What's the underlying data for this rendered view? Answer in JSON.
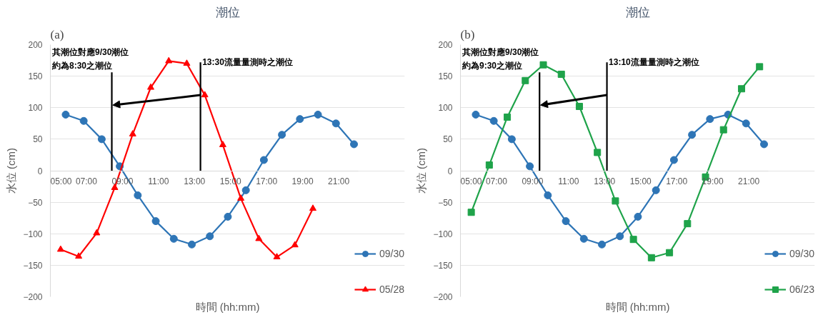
{
  "chart_data": [
    {
      "type": "line",
      "title": "潮位",
      "xlabel": "時間 (hh:mm)",
      "ylabel": "水位 (cm)",
      "xlim": [
        5,
        22.1
      ],
      "ylim": [
        -200,
        200
      ],
      "xticks": [
        {
          "value": 5,
          "label": "05:00"
        },
        {
          "value": 7,
          "label": "07:00"
        },
        {
          "value": 9,
          "label": "09:00"
        },
        {
          "value": 11,
          "label": "11:00"
        },
        {
          "value": 13,
          "label": "13:00"
        },
        {
          "value": 15,
          "label": "15:00"
        },
        {
          "value": 17,
          "label": "17:00"
        },
        {
          "value": 19,
          "label": "19:00"
        },
        {
          "value": 21,
          "label": "21:00"
        }
      ],
      "yticks": [
        -200,
        -150,
        -100,
        -50,
        0,
        50,
        100,
        150,
        200
      ],
      "grid": "y",
      "legend": "right",
      "series": [
        {
          "name": "09/30",
          "color": "#2e75b6",
          "marker": "circle",
          "x": [
            5.85,
            6.85,
            7.85,
            8.85,
            9.85,
            10.85,
            11.85,
            12.85,
            13.85,
            14.85,
            15.85,
            16.85,
            17.85,
            18.85,
            19.85,
            20.85,
            21.85
          ],
          "values": [
            89,
            79,
            50,
            7,
            -39,
            -80,
            -108,
            -117,
            -104,
            -73,
            -31,
            17,
            57,
            82,
            89,
            75,
            42
          ]
        },
        {
          "name": "05/28",
          "color": "#ff0000",
          "marker": "triangle",
          "x": [
            5.57,
            6.57,
            7.57,
            8.57,
            9.57,
            10.57,
            11.57,
            12.57,
            13.57,
            14.57,
            15.57,
            16.57,
            17.57,
            18.57,
            19.57
          ],
          "values": [
            -125,
            -136,
            -99,
            -27,
            58,
            132,
            174,
            170,
            120,
            41,
            -44,
            -108,
            -137,
            -118,
            -60
          ]
        }
      ],
      "ref_lines": [
        {
          "axis": "x",
          "value": 8.41,
          "label": "其潮位對應9/30潮位約為8:30之潮位"
        },
        {
          "axis": "x",
          "value": 13.33,
          "label": "13:30流量量測時之潮位"
        }
      ],
      "annotations": [
        "(a)"
      ]
    },
    {
      "type": "line",
      "title": "潮位",
      "xlabel": "時間 (hh:mm)",
      "ylabel": "水位 (cm)",
      "xlim": [
        5,
        22.1
      ],
      "ylim": [
        -200,
        200
      ],
      "xticks": [
        {
          "value": 5,
          "label": "05:00"
        },
        {
          "value": 7,
          "label": "07:00"
        },
        {
          "value": 9,
          "label": "09:00"
        },
        {
          "value": 11,
          "label": "11:00"
        },
        {
          "value": 13,
          "label": "13:00"
        },
        {
          "value": 15,
          "label": "15:00"
        },
        {
          "value": 17,
          "label": "17:00"
        },
        {
          "value": 19,
          "label": "19:00"
        },
        {
          "value": 21,
          "label": "21:00"
        }
      ],
      "yticks": [
        -200,
        -150,
        -100,
        -50,
        0,
        50,
        100,
        150,
        200
      ],
      "grid": "y",
      "legend": "right",
      "series": [
        {
          "name": "09/30",
          "color": "#2e75b6",
          "marker": "circle",
          "x": [
            5.85,
            6.85,
            7.85,
            8.85,
            9.85,
            10.85,
            11.85,
            12.85,
            13.85,
            14.85,
            15.85,
            16.85,
            17.85,
            18.85,
            19.85,
            20.85,
            21.85
          ],
          "values": [
            89,
            79,
            50,
            7,
            -39,
            -80,
            -108,
            -117,
            -104,
            -73,
            -31,
            17,
            57,
            82,
            89,
            75,
            42
          ]
        },
        {
          "name": "06/23",
          "color": "#1fa34a",
          "marker": "square",
          "x": [
            5.6,
            6.6,
            7.6,
            8.6,
            9.6,
            10.6,
            11.6,
            12.6,
            13.6,
            14.6,
            15.6,
            16.6,
            17.6,
            18.6,
            19.6,
            20.6,
            21.6
          ],
          "values": [
            -66,
            9,
            85,
            143,
            168,
            153,
            102,
            29,
            -48,
            -109,
            -138,
            -130,
            -84,
            -10,
            65,
            130,
            165
          ]
        }
      ],
      "ref_lines": [
        {
          "axis": "x",
          "value": 9.39,
          "label": "其潮位對應9/30潮位約為9:30之潮位"
        },
        {
          "axis": "x",
          "value": 13.13,
          "label": "13:10流量量測時之潮位"
        }
      ],
      "annotations": [
        "(b)"
      ]
    }
  ]
}
